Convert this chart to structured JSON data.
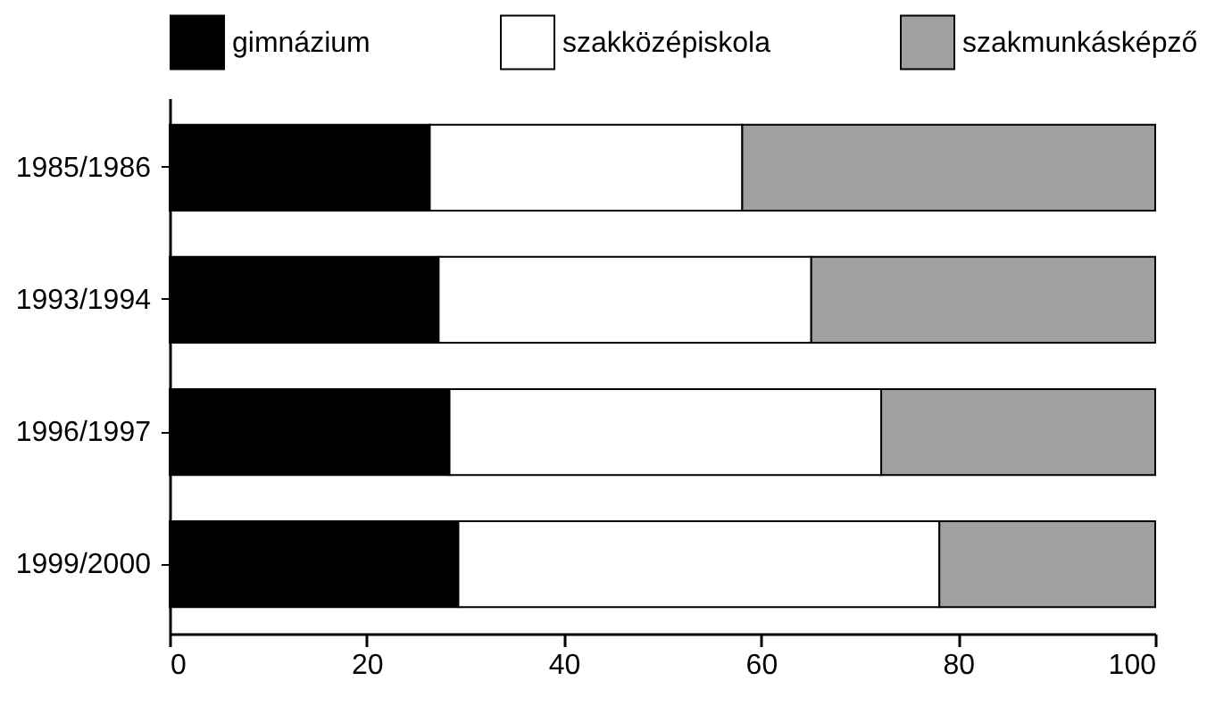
{
  "chart_data": {
    "type": "bar",
    "orientation": "horizontal",
    "stacked": true,
    "categories": [
      "1985/1986",
      "1993/1994",
      "1996/1997",
      "1999/2000"
    ],
    "series": [
      {
        "name": "gimnázium",
        "color": "#000000",
        "values": [
          26.4,
          27.3,
          28.4,
          29.3
        ]
      },
      {
        "name": "szakközépiskola",
        "color": "#ffffff",
        "values": [
          31.7,
          37.8,
          43.8,
          48.8
        ]
      },
      {
        "name": "szakmunkásképző",
        "color": "#a0a0a0",
        "values": [
          41.9,
          34.9,
          27.8,
          21.9
        ]
      }
    ],
    "xlim": [
      0,
      100
    ],
    "xticks": [
      0,
      20,
      40,
      60,
      80,
      100
    ],
    "grid": false,
    "legend": "top"
  }
}
